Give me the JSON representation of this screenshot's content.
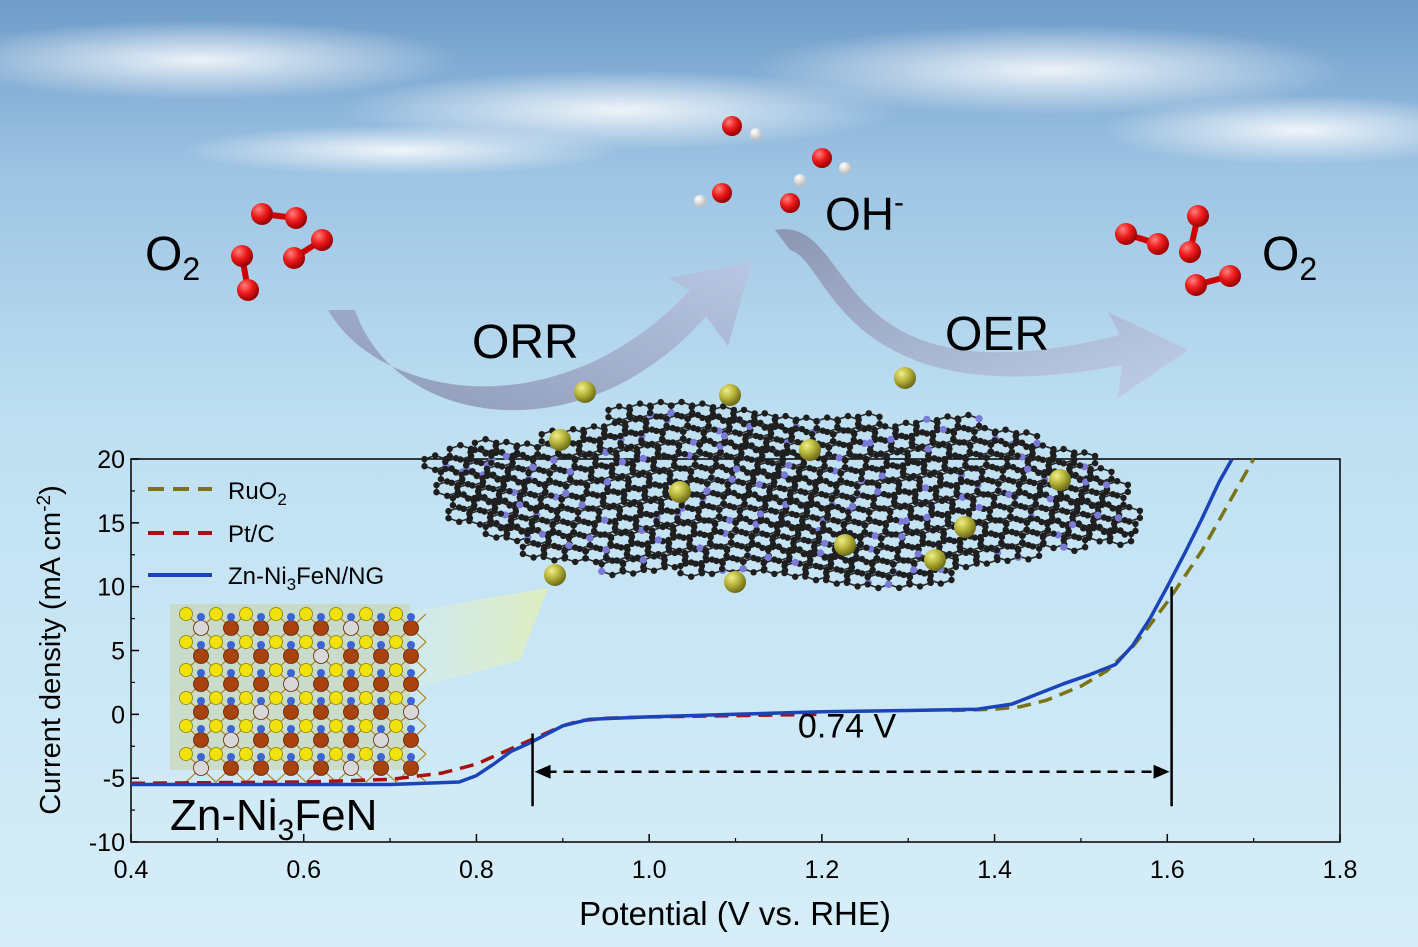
{
  "scheme": {
    "left_species": {
      "main": "O",
      "sub": "2"
    },
    "middle_species": {
      "main": "OH",
      "sup": "-"
    },
    "right_species": {
      "main": "O",
      "sub": "2"
    },
    "left_reaction": "ORR",
    "right_reaction": "OER",
    "crystal_label": {
      "prefix": "Zn-Ni",
      "sub": "3",
      "suffix": "FeN"
    }
  },
  "chart_data": {
    "type": "line",
    "title": "",
    "xlabel": "Potential (V vs. RHE)",
    "ylabel": {
      "main": "Current density (mA cm",
      "sup": "-2",
      "tail": ")"
    },
    "xlim": [
      0.4,
      1.8
    ],
    "ylim": [
      -10,
      20
    ],
    "xticks": [
      0.4,
      0.6,
      0.8,
      1.0,
      1.2,
      1.4,
      1.6,
      1.8
    ],
    "xtick_labels": [
      "0.4",
      "0.6",
      "0.8",
      "1.0",
      "1.2",
      "1.4",
      "1.6",
      "1.8"
    ],
    "yticks": [
      -10,
      -5,
      0,
      5,
      10,
      15,
      20
    ],
    "ytick_labels": [
      "-10",
      "-5",
      "0",
      "5",
      "10",
      "15",
      "20"
    ],
    "grid": false,
    "legend_position": "top-left",
    "series": [
      {
        "name": {
          "main": "RuO",
          "sub": "2",
          "suffix": ""
        },
        "style": "dashed",
        "color": "#7a7416",
        "x": [
          1.35,
          1.4,
          1.43,
          1.46,
          1.5,
          1.53,
          1.56,
          1.58,
          1.6,
          1.62,
          1.64,
          1.66,
          1.68,
          1.7
        ],
        "y": [
          0.3,
          0.4,
          0.6,
          1.1,
          2.2,
          3.4,
          5.3,
          7.0,
          8.8,
          10.8,
          12.8,
          15.2,
          17.6,
          20.0
        ]
      },
      {
        "name": {
          "main": "Pt/C",
          "sub": "",
          "suffix": ""
        },
        "style": "dashed",
        "color": "#a61212",
        "x": [
          0.4,
          0.6,
          0.7,
          0.76,
          0.8,
          0.83,
          0.86,
          0.88,
          0.9,
          0.92,
          0.95,
          1.0,
          1.1,
          1.2
        ],
        "y": [
          -5.4,
          -5.3,
          -5.1,
          -4.6,
          -3.9,
          -3.0,
          -2.1,
          -1.5,
          -0.9,
          -0.5,
          -0.3,
          -0.2,
          -0.1,
          0.0
        ]
      },
      {
        "name": {
          "main": "Zn-Ni",
          "sub": "3",
          "suffix": "FeN/NG"
        },
        "style": "solid",
        "color": "#1a44b8",
        "x": [
          0.4,
          0.6,
          0.7,
          0.78,
          0.8,
          0.82,
          0.84,
          0.86,
          0.88,
          0.9,
          0.93,
          0.96,
          1.0,
          1.1,
          1.2,
          1.3,
          1.38,
          1.42,
          1.45,
          1.48,
          1.51,
          1.54,
          1.56,
          1.58,
          1.6,
          1.62,
          1.64,
          1.66,
          1.675
        ],
        "y": [
          -5.5,
          -5.5,
          -5.5,
          -5.3,
          -4.8,
          -3.9,
          -2.9,
          -2.3,
          -1.6,
          -0.9,
          -0.4,
          -0.3,
          -0.2,
          0.0,
          0.2,
          0.3,
          0.4,
          0.8,
          1.6,
          2.4,
          3.1,
          3.9,
          5.4,
          7.5,
          10.0,
          12.6,
          15.3,
          18.2,
          20.0
        ]
      }
    ],
    "annotations": {
      "delta_label": "0.74 V",
      "x_start": 0.865,
      "x_end": 1.605,
      "y_arrow": -4.5
    }
  }
}
